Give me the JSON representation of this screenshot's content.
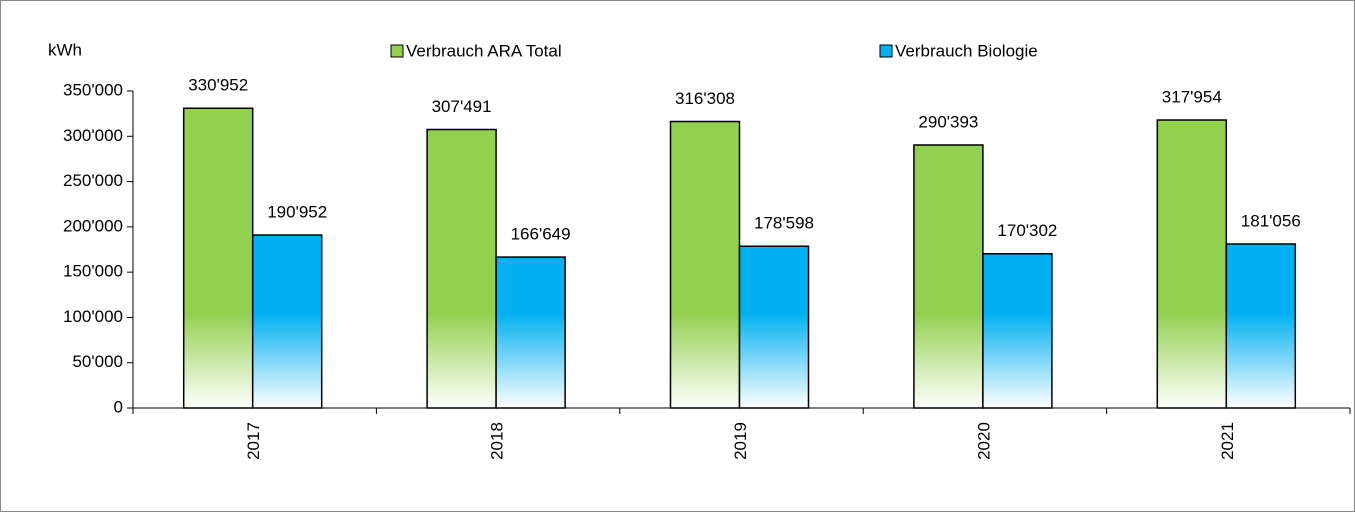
{
  "chart_data": {
    "type": "bar",
    "y_label": "kWh",
    "categories": [
      "2017",
      "2018",
      "2019",
      "2020",
      "2021"
    ],
    "series": [
      {
        "name": "Verbrauch ARA Total",
        "color": "#92d050",
        "values": [
          330952,
          307491,
          316308,
          290393,
          317954
        ],
        "value_labels": [
          "330'952",
          "307'491",
          "316'308",
          "290'393",
          "317'954"
        ]
      },
      {
        "name": "Verbrauch Biologie",
        "color": "#00b0f0",
        "values": [
          190952,
          166649,
          178598,
          170302,
          181056
        ],
        "value_labels": [
          "190'952",
          "166'649",
          "178'598",
          "170'302",
          "181'056"
        ]
      }
    ],
    "ylim": [
      0,
      350000
    ],
    "yticks": [
      0,
      {
        "value": 50000,
        "label": "50'000"
      },
      {
        "value": 100000,
        "label": "100'000"
      },
      {
        "value": 150000,
        "label": "150'000"
      },
      {
        "value": 200000,
        "label": "200'000"
      },
      {
        "value": 250000,
        "label": "250'000"
      },
      {
        "value": 300000,
        "label": "300'000"
      },
      {
        "value": 350000,
        "label": "350'000"
      }
    ],
    "legend": "top"
  }
}
